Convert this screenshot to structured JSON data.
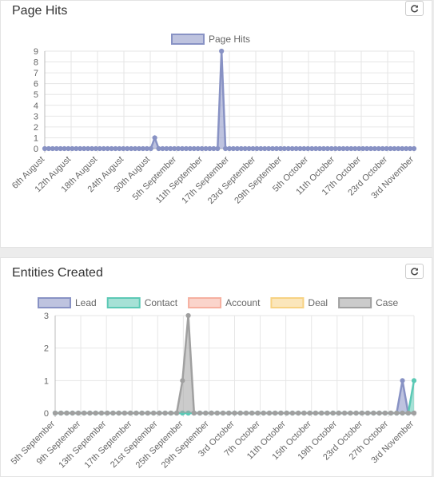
{
  "panels": [
    {
      "title": "Page Hits",
      "refresh_icon": "refresh-icon"
    },
    {
      "title": "Entities Created",
      "refresh_icon": "refresh-icon"
    }
  ],
  "chart_data": [
    {
      "type": "line",
      "title": "",
      "legend_placement": "top",
      "grid": true,
      "ylim": [
        0,
        9
      ],
      "yticks": [
        0,
        1,
        2,
        3,
        4,
        5,
        6,
        7,
        8,
        9
      ],
      "x_tick_labels": [
        "6th August",
        "12th August",
        "18th August",
        "24th August",
        "30th August",
        "5th September",
        "11th September",
        "17th September",
        "23rd September",
        "29th September",
        "5th October",
        "11th October",
        "17th October",
        "23rd October",
        "3rd November"
      ],
      "series": [
        {
          "name": "Page Hits",
          "color": "#8892c4",
          "values": [
            0,
            0,
            0,
            0,
            0,
            0,
            0,
            0,
            0,
            0,
            0,
            0,
            0,
            0,
            0,
            0,
            0,
            0,
            0,
            0,
            0,
            0,
            0,
            0,
            0,
            0,
            0,
            0,
            1,
            0,
            0,
            0,
            0,
            0,
            0,
            0,
            0,
            0,
            0,
            0,
            0,
            0,
            0,
            0,
            0,
            9,
            0,
            0,
            0,
            0,
            0,
            0,
            0,
            0,
            0,
            0,
            0,
            0,
            0,
            0,
            0,
            0,
            0,
            0,
            0,
            0,
            0,
            0,
            0,
            0,
            0,
            0,
            0,
            0,
            0,
            0,
            0,
            0,
            0,
            0,
            0,
            0,
            0,
            0,
            0,
            0,
            0,
            0,
            0,
            0,
            0,
            0,
            0,
            0,
            0
          ]
        }
      ]
    },
    {
      "type": "area",
      "title": "",
      "legend_placement": "top",
      "grid": true,
      "ylim": [
        0,
        3
      ],
      "yticks": [
        0,
        1,
        2,
        3
      ],
      "x_tick_labels": [
        "5th September",
        "9th September",
        "13th September",
        "17th September",
        "21st September",
        "25th September",
        "29th September",
        "3rd October",
        "7th October",
        "11th October",
        "15th October",
        "19th October",
        "23rd October",
        "27th October",
        "3rd November"
      ],
      "series": [
        {
          "name": "Lead",
          "color": "#8892c4",
          "values": [
            0,
            0,
            0,
            0,
            0,
            0,
            0,
            0,
            0,
            0,
            0,
            0,
            0,
            0,
            0,
            0,
            0,
            0,
            0,
            0,
            0,
            0,
            0,
            0,
            0,
            0,
            0,
            0,
            0,
            0,
            0,
            0,
            0,
            0,
            0,
            0,
            0,
            0,
            0,
            0,
            0,
            0,
            0,
            0,
            0,
            0,
            0,
            0,
            0,
            0,
            0,
            0,
            0,
            0,
            0,
            0,
            0,
            0,
            0,
            0,
            1,
            0,
            0
          ]
        },
        {
          "name": "Contact",
          "color": "#5cc9b5",
          "values": [
            0,
            0,
            0,
            0,
            0,
            0,
            0,
            0,
            0,
            0,
            0,
            0,
            0,
            0,
            0,
            0,
            0,
            0,
            0,
            0,
            0,
            0,
            0,
            0,
            0,
            0,
            0,
            0,
            0,
            0,
            0,
            0,
            0,
            0,
            0,
            0,
            0,
            0,
            0,
            0,
            0,
            0,
            0,
            0,
            0,
            0,
            0,
            0,
            0,
            0,
            0,
            0,
            0,
            0,
            0,
            0,
            0,
            0,
            0,
            0,
            0,
            0,
            1
          ]
        },
        {
          "name": "Account",
          "color": "#f6b0a0",
          "values": []
        },
        {
          "name": "Deal",
          "color": "#f7d283",
          "values": []
        },
        {
          "name": "Case",
          "color": "#a0a0a0",
          "values": [
            0,
            0,
            0,
            0,
            0,
            0,
            0,
            0,
            0,
            0,
            0,
            0,
            0,
            0,
            0,
            0,
            0,
            0,
            0,
            0,
            0,
            0,
            1,
            3,
            0,
            0,
            0,
            0,
            0,
            0,
            0,
            0,
            0,
            0,
            0,
            0,
            0,
            0,
            0,
            0,
            0,
            0,
            0,
            0,
            0,
            0,
            0,
            0,
            0,
            0,
            0,
            0,
            0,
            0,
            0,
            0,
            0,
            0,
            0,
            0,
            0,
            0,
            0
          ]
        }
      ]
    }
  ]
}
